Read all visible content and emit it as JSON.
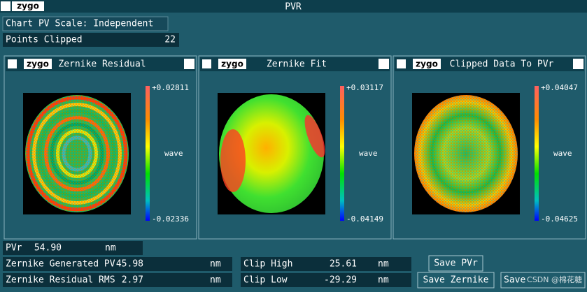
{
  "window": {
    "logo": "zygo",
    "title": "PVR"
  },
  "chart_pv_scale": "Chart PV Scale: Independent",
  "points_clipped": {
    "label": "Points Clipped",
    "value": "22"
  },
  "panels": [
    {
      "logo": "zygo",
      "title": "Zernike Residual",
      "max": "+0.02811",
      "unit": "wave",
      "min": "-0.02336"
    },
    {
      "logo": "zygo",
      "title": "Zernike Fit",
      "max": "+0.03117",
      "unit": "wave",
      "min": "-0.04149"
    },
    {
      "logo": "zygo",
      "title": "Clipped Data To PVr",
      "max": "+0.04047",
      "unit": "wave",
      "min": "-0.04625"
    }
  ],
  "results": [
    {
      "label": "PVr",
      "value": "54.90",
      "unit": "nm"
    },
    {
      "label": "Zernike Generated PV",
      "value": "45.98",
      "unit": "nm"
    },
    {
      "label": "Zernike Residual RMS",
      "value": "2.97",
      "unit": "nm"
    },
    {
      "label": "Clip High",
      "value": "25.61",
      "unit": "nm"
    },
    {
      "label": "Clip Low",
      "value": "-29.29",
      "unit": "nm"
    }
  ],
  "buttons": [
    "Save PVr",
    "Save Zernike",
    "Save"
  ],
  "watermark": "CSDN @棉花糖"
}
